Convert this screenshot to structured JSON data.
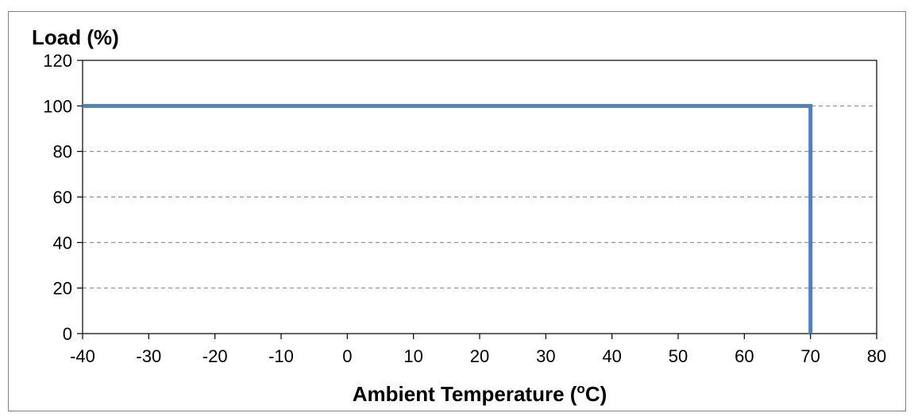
{
  "chart_data": {
    "type": "line",
    "ylabel": "Load (%)",
    "xlabel_parts": [
      "Ambient Temperature (",
      "o",
      "C)"
    ],
    "xlim": [
      -40,
      80
    ],
    "ylim": [
      0,
      120
    ],
    "x_ticks": [
      -40,
      -30,
      -20,
      -10,
      0,
      10,
      20,
      30,
      40,
      50,
      60,
      70,
      80
    ],
    "y_ticks": [
      0,
      20,
      40,
      60,
      80,
      100,
      120
    ],
    "grid": true,
    "series": [
      {
        "color": "#4f81bd",
        "points": [
          [
            -40,
            100
          ],
          [
            70,
            100
          ],
          [
            70,
            0
          ]
        ]
      }
    ]
  }
}
